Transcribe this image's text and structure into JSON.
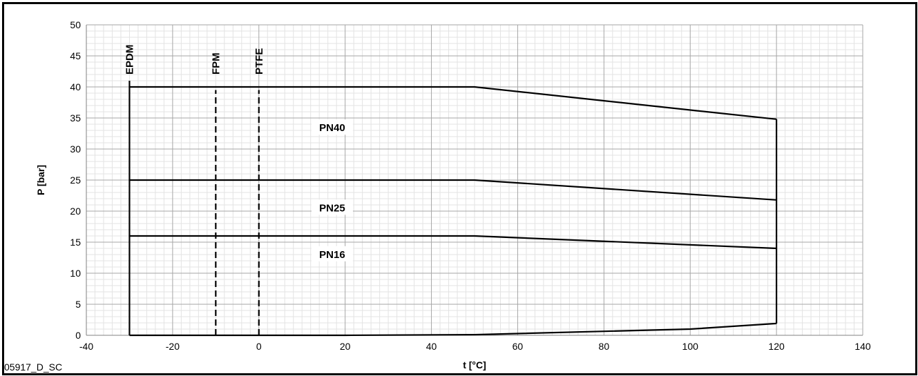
{
  "chart_data": {
    "type": "line",
    "xlabel": "t [°C]",
    "ylabel": "P [bar]",
    "xlim": [
      -40,
      140
    ],
    "ylim": [
      0,
      50
    ],
    "x_ticks": [
      -40,
      -20,
      0,
      20,
      40,
      60,
      80,
      100,
      120,
      140
    ],
    "y_ticks": [
      0,
      5,
      10,
      15,
      20,
      25,
      30,
      35,
      40,
      45,
      50
    ],
    "grid": true,
    "series": [
      {
        "name": "PN40",
        "style": "solid",
        "points": [
          [
            -30,
            40
          ],
          [
            50,
            40
          ],
          [
            120,
            34.8
          ]
        ]
      },
      {
        "name": "PN25",
        "style": "solid",
        "points": [
          [
            -30,
            25
          ],
          [
            50,
            25
          ],
          [
            120,
            21.8
          ]
        ]
      },
      {
        "name": "PN16",
        "style": "solid",
        "points": [
          [
            -30,
            16
          ],
          [
            50,
            16
          ],
          [
            120,
            14
          ]
        ]
      },
      {
        "name": "",
        "style": "solid",
        "points": [
          [
            -30,
            0
          ],
          [
            20,
            0
          ],
          [
            50,
            0.1
          ],
          [
            100,
            1
          ],
          [
            120,
            1.9
          ]
        ]
      },
      {
        "name": "EPDM",
        "style": "solid",
        "points": [
          [
            -30,
            0
          ],
          [
            -30,
            41
          ]
        ]
      },
      {
        "name": "",
        "style": "solid",
        "points": [
          [
            120,
            1.9
          ],
          [
            120,
            34.8
          ]
        ]
      },
      {
        "name": "FPM",
        "style": "dashed",
        "points": [
          [
            -10,
            0
          ],
          [
            -10,
            39.5
          ]
        ]
      },
      {
        "name": "PTFE",
        "style": "dashed",
        "points": [
          [
            0,
            0
          ],
          [
            0,
            39.5
          ]
        ]
      }
    ],
    "annotations": [
      {
        "text": "PN40",
        "x": 17,
        "y": 33.2
      },
      {
        "text": "PN25",
        "x": 17,
        "y": 20.3
      },
      {
        "text": "PN16",
        "x": 17,
        "y": 12.8
      }
    ],
    "vertical_labels": [
      {
        "text": "EPDM",
        "x": -30
      },
      {
        "text": "FPM",
        "x": -10
      },
      {
        "text": "PTFE",
        "x": 0
      }
    ]
  },
  "footer_code": "05917_D_SC"
}
